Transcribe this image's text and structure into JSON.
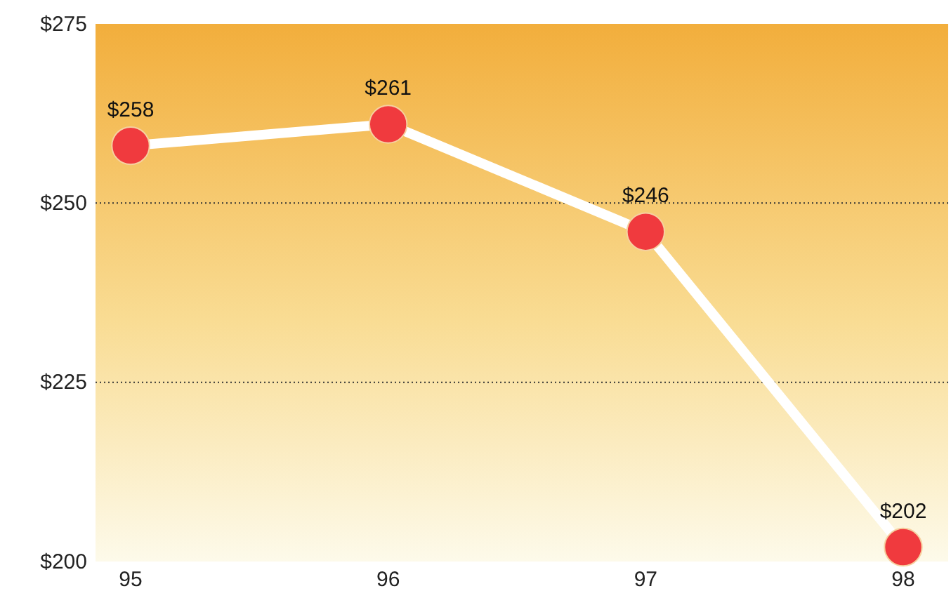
{
  "chart_data": {
    "type": "line",
    "categories": [
      "95",
      "96",
      "97",
      "98"
    ],
    "series": [
      {
        "color": "#f03a3e",
        "values": [
          258,
          261,
          246,
          202
        ],
        "value_labels": [
          "$258",
          "$261",
          "$246",
          "$202"
        ]
      }
    ],
    "ylim": [
      200,
      275
    ],
    "yticks": [
      {
        "value": 200,
        "label": "$200"
      },
      {
        "value": 225,
        "label": "$225"
      },
      {
        "value": 250,
        "label": "$250"
      },
      {
        "value": 275,
        "label": "$275"
      }
    ],
    "grid": "y",
    "marker": "circle",
    "line_style": "solid"
  }
}
